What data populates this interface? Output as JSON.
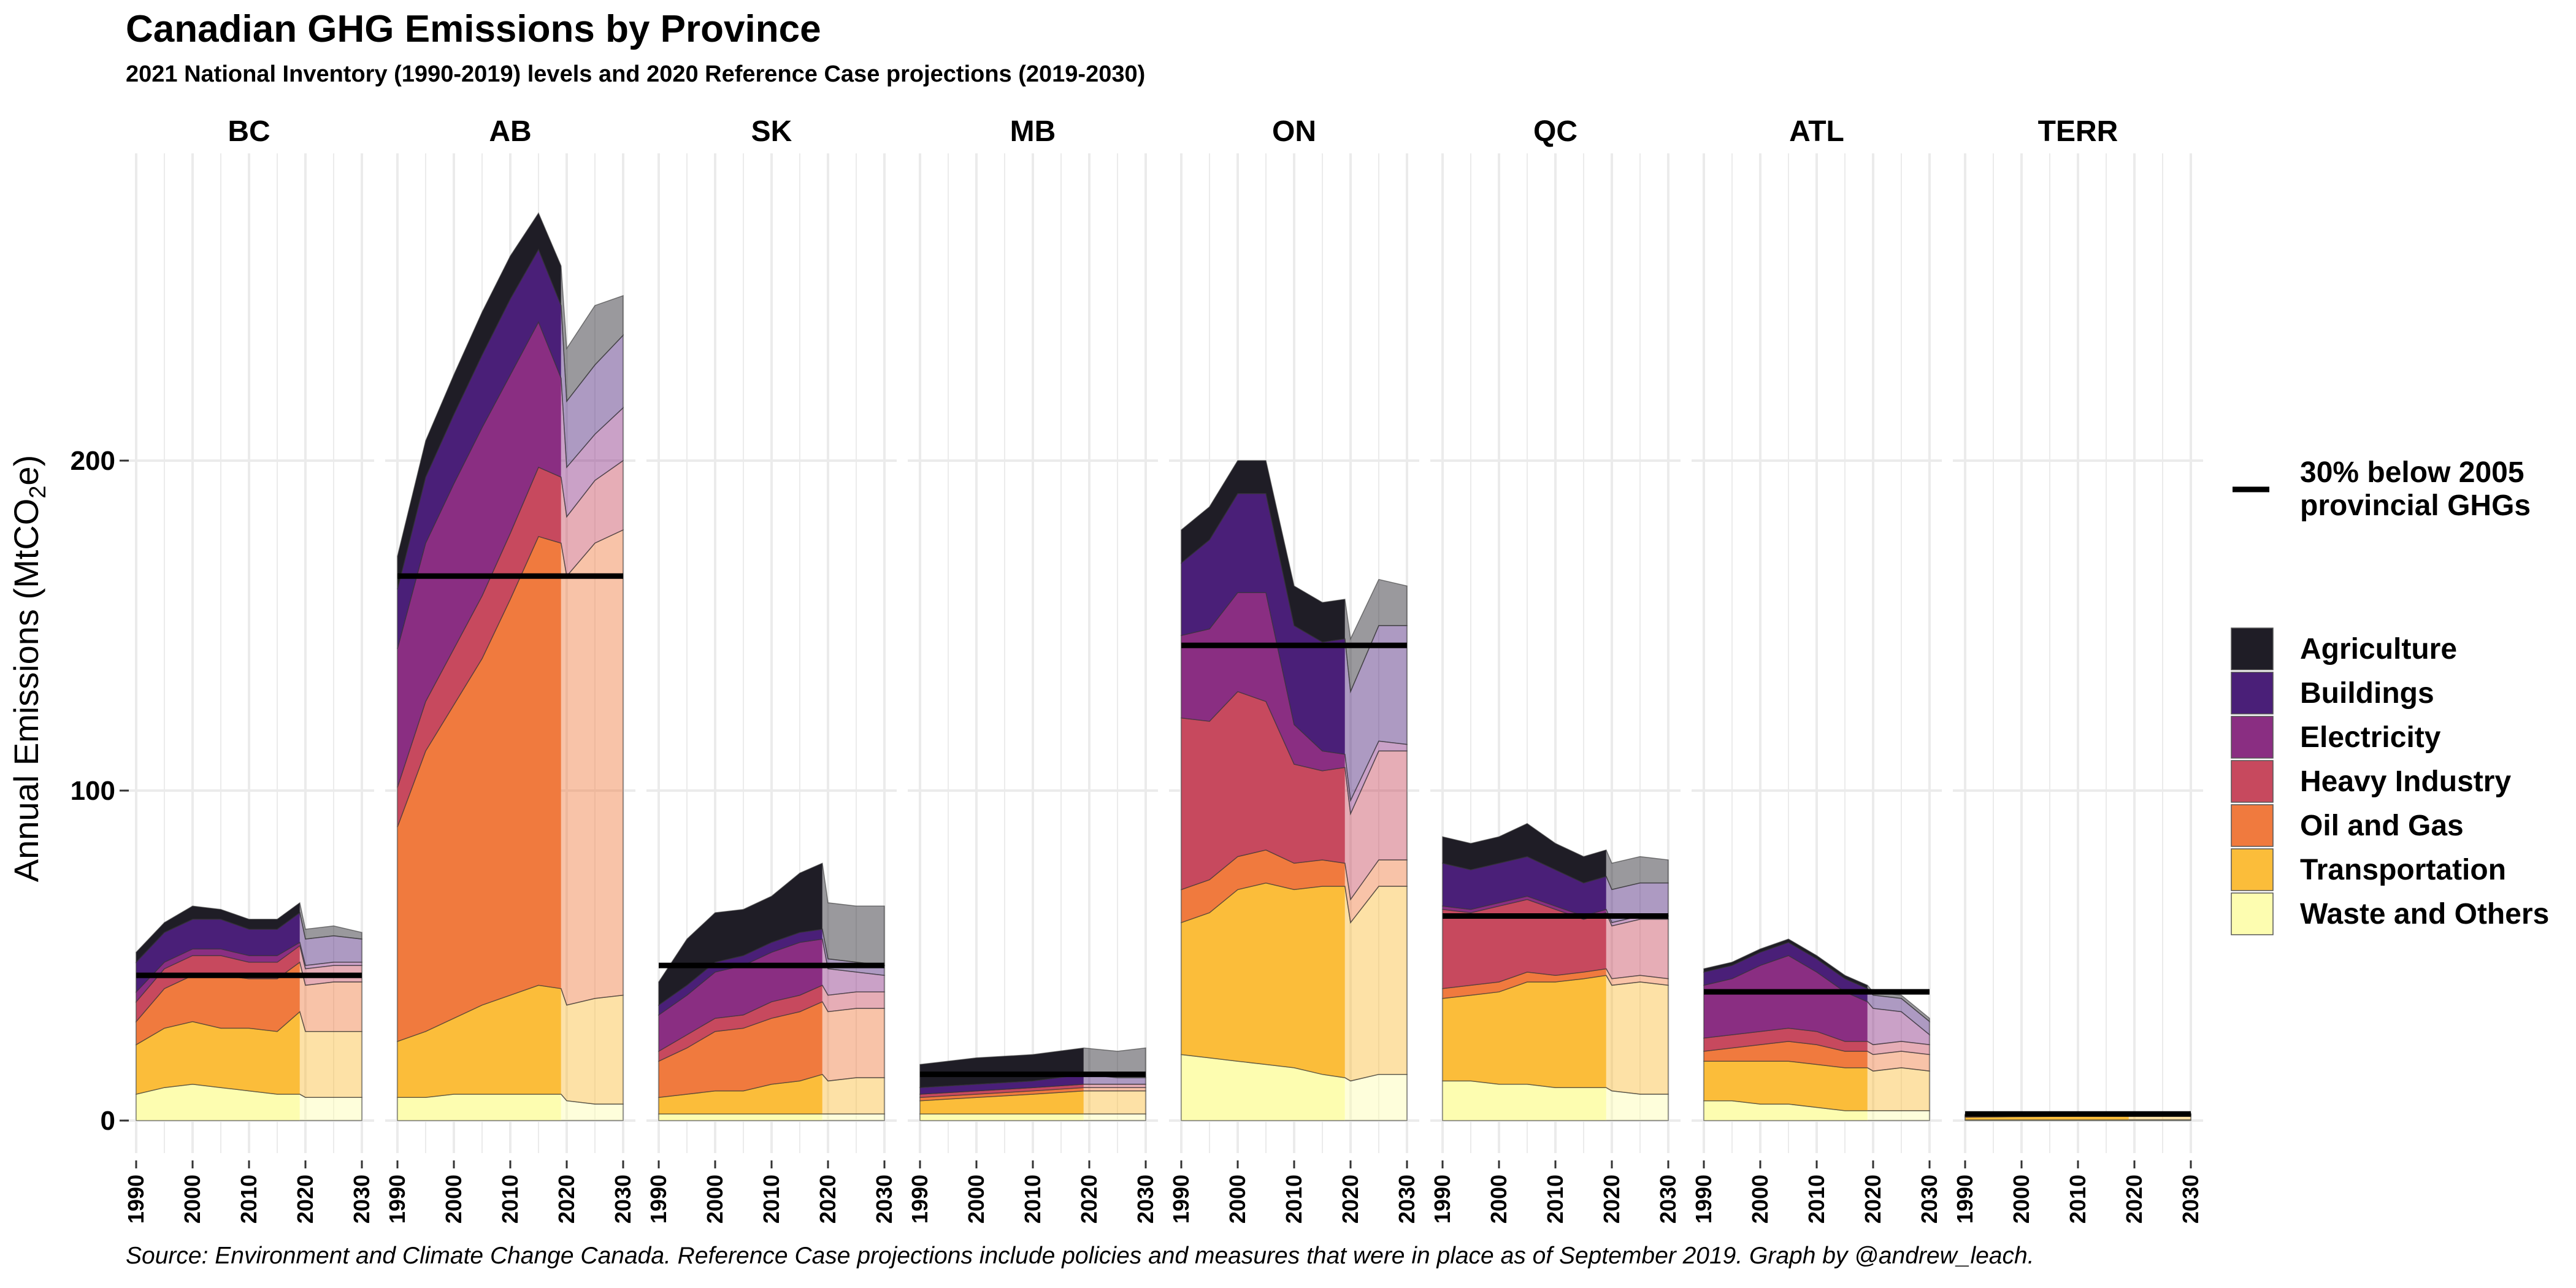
{
  "title": "Canadian GHG Emissions by Province",
  "subtitle": "2021 National Inventory (1990-2019) levels and 2020 Reference Case projections (2019-2030)",
  "caption": "Source: Environment and Climate Change Canada. Reference Case projections include policies and measures that were in place as of September 2019. Graph by @andrew_leach.",
  "colors": {
    "Agriculture": "#1f1d26",
    "Buildings": "#4a1f78",
    "Electricity": "#8a2e82",
    "Heavy Industry": "#c7495e",
    "Oil and Gas": "#f07a3e",
    "Transportation": "#fbbd3a",
    "Waste and Others": "#fdfdb0",
    "target_line": "#000000",
    "grid": "#ebebeb"
  },
  "legend": {
    "target_label_line1": "30% below 2005",
    "target_label_line2": "provincial GHGs"
  },
  "chart_data": {
    "type": "area",
    "stacked": true,
    "facet_by": "province",
    "ylabel": "Annual Emissions  (MtCO2e)",
    "xlim": [
      1990,
      2030
    ],
    "ylim": [
      0,
      280
    ],
    "yticks": [
      0,
      100,
      200
    ],
    "xticks": [
      1990,
      2000,
      2010,
      2020,
      2030
    ],
    "historic_end": 2019,
    "sectors": [
      "Waste and Others",
      "Transportation",
      "Oil and Gas",
      "Heavy Industry",
      "Electricity",
      "Buildings",
      "Agriculture"
    ],
    "panels": [
      {
        "province": "BC",
        "target": 44,
        "points": [
          {
            "year": 1990,
            "values": [
              8,
              15,
              7,
              6,
              3,
              9,
              3
            ]
          },
          {
            "year": 1995,
            "values": [
              10,
              18,
              12,
              6,
              2,
              9,
              3
            ]
          },
          {
            "year": 2000,
            "values": [
              11,
              19,
              14,
              6,
              2,
              9,
              4
            ]
          },
          {
            "year": 2005,
            "values": [
              10,
              18,
              16,
              6,
              2,
              9,
              3
            ]
          },
          {
            "year": 2010,
            "values": [
              9,
              19,
              15,
              5,
              2,
              8,
              3
            ]
          },
          {
            "year": 2015,
            "values": [
              8,
              19,
              16,
              5,
              2,
              8,
              3
            ]
          },
          {
            "year": 2019,
            "values": [
              8,
              25,
              15,
              5,
              1,
              9,
              3
            ]
          },
          {
            "year": 2020,
            "values": [
              7,
              20,
              14,
              5,
              1,
              8,
              3
            ]
          },
          {
            "year": 2025,
            "values": [
              7,
              20,
              15,
              5,
              1,
              8,
              3
            ]
          },
          {
            "year": 2030,
            "values": [
              7,
              20,
              15,
              5,
              1,
              7,
              2
            ]
          }
        ]
      },
      {
        "province": "AB",
        "target": 165,
        "points": [
          {
            "year": 1990,
            "values": [
              7,
              17,
              65,
              12,
              42,
              18,
              10
            ]
          },
          {
            "year": 1995,
            "values": [
              7,
              20,
              85,
              15,
              48,
              20,
              11
            ]
          },
          {
            "year": 2000,
            "values": [
              8,
              23,
              95,
              17,
              50,
              21,
              12
            ]
          },
          {
            "year": 2005,
            "values": [
              8,
              27,
              105,
              19,
              51,
              22,
              13
            ]
          },
          {
            "year": 2010,
            "values": [
              8,
              30,
              120,
              20,
              48,
              23,
              13
            ]
          },
          {
            "year": 2015,
            "values": [
              8,
              33,
              136,
              21,
              44,
              22,
              11
            ]
          },
          {
            "year": 2019,
            "values": [
              8,
              32,
              135,
              20,
              30,
              22,
              12
            ]
          },
          {
            "year": 2020,
            "values": [
              6,
              29,
              130,
              18,
              15,
              20,
              16
            ]
          },
          {
            "year": 2025,
            "values": [
              5,
              32,
              138,
              19,
              14,
              21,
              18
            ]
          },
          {
            "year": 2030,
            "values": [
              5,
              33,
              141,
              21,
              16,
              22,
              12
            ]
          }
        ]
      },
      {
        "province": "SK",
        "target": 47,
        "points": [
          {
            "year": 1990,
            "values": [
              2,
              5,
              11,
              3,
              11,
              3,
              7
            ]
          },
          {
            "year": 1995,
            "values": [
              2,
              6,
              14,
              4,
              12,
              3,
              14
            ]
          },
          {
            "year": 2000,
            "values": [
              2,
              7,
              18,
              4,
              14,
              3,
              15
            ]
          },
          {
            "year": 2005,
            "values": [
              2,
              7,
              19,
              4,
              15,
              3,
              14
            ]
          },
          {
            "year": 2010,
            "values": [
              2,
              9,
              20,
              5,
              15,
              3,
              14
            ]
          },
          {
            "year": 2015,
            "values": [
              2,
              10,
              21,
              5,
              16,
              3,
              18
            ]
          },
          {
            "year": 2019,
            "values": [
              2,
              12,
              22,
              5,
              14,
              3,
              20
            ]
          },
          {
            "year": 2020,
            "values": [
              2,
              10,
              21,
              5,
              8,
              3,
              17
            ]
          },
          {
            "year": 2025,
            "values": [
              2,
              11,
              21,
              5,
              6,
              3,
              17
            ]
          },
          {
            "year": 2030,
            "values": [
              2,
              11,
              21,
              5,
              5,
              3,
              18
            ]
          }
        ]
      },
      {
        "province": "MB",
        "target": 14,
        "points": [
          {
            "year": 1990,
            "values": [
              2,
              4,
              1,
              1,
              0,
              2,
              7
            ]
          },
          {
            "year": 2000,
            "values": [
              2,
              5,
              1,
              1,
              0,
              2,
              8
            ]
          },
          {
            "year": 2010,
            "values": [
              2,
              6,
              1,
              1,
              0,
              2,
              8
            ]
          },
          {
            "year": 2019,
            "values": [
              2,
              7,
              1,
              1,
              0,
              3,
              8
            ]
          },
          {
            "year": 2025,
            "values": [
              2,
              7,
              1,
              1,
              0,
              2,
              8
            ]
          },
          {
            "year": 2030,
            "values": [
              2,
              7,
              1,
              1,
              0,
              2,
              9
            ]
          }
        ]
      },
      {
        "province": "ON",
        "target": 144,
        "points": [
          {
            "year": 1990,
            "values": [
              20,
              40,
              10,
              52,
              25,
              22,
              10
            ]
          },
          {
            "year": 1995,
            "values": [
              19,
              44,
              10,
              48,
              28,
              27,
              10
            ]
          },
          {
            "year": 2000,
            "values": [
              18,
              52,
              10,
              50,
              30,
              30,
              10
            ]
          },
          {
            "year": 2005,
            "values": [
              17,
              55,
              10,
              45,
              33,
              30,
              10
            ]
          },
          {
            "year": 2010,
            "values": [
              16,
              54,
              8,
              30,
              12,
              30,
              12
            ]
          },
          {
            "year": 2015,
            "values": [
              14,
              57,
              8,
              27,
              6,
              33,
              12
            ]
          },
          {
            "year": 2019,
            "values": [
              13,
              58,
              7,
              29,
              4,
              35,
              12
            ]
          },
          {
            "year": 2020,
            "values": [
              12,
              48,
              7,
              26,
              4,
              33,
              16
            ]
          },
          {
            "year": 2025,
            "values": [
              14,
              57,
              8,
              33,
              3,
              35,
              14
            ]
          },
          {
            "year": 2030,
            "values": [
              14,
              57,
              8,
              33,
              2,
              36,
              12
            ]
          }
        ]
      },
      {
        "province": "QC",
        "target": 62,
        "points": [
          {
            "year": 1990,
            "values": [
              12,
              25,
              3,
              24,
              1,
              13,
              8
            ]
          },
          {
            "year": 1995,
            "values": [
              12,
              26,
              3,
              22,
              1,
              12,
              8
            ]
          },
          {
            "year": 2000,
            "values": [
              11,
              28,
              3,
              23,
              1,
              12,
              8
            ]
          },
          {
            "year": 2005,
            "values": [
              11,
              31,
              3,
              22,
              1,
              12,
              10
            ]
          },
          {
            "year": 2010,
            "values": [
              10,
              32,
              2,
              20,
              1,
              11,
              8
            ]
          },
          {
            "year": 2015,
            "values": [
              10,
              33,
              2,
              16,
              1,
              10,
              8
            ]
          },
          {
            "year": 2019,
            "values": [
              10,
              34,
              2,
              17,
              1,
              10,
              8
            ]
          },
          {
            "year": 2020,
            "values": [
              9,
              32,
              2,
              16,
              1,
              10,
              8
            ]
          },
          {
            "year": 2025,
            "values": [
              8,
              34,
              2,
              17,
              1,
              10,
              8
            ]
          },
          {
            "year": 2030,
            "values": [
              8,
              33,
              2,
              18,
              1,
              10,
              7
            ]
          }
        ]
      },
      {
        "province": "ATL",
        "target": 39,
        "points": [
          {
            "year": 1990,
            "values": [
              6,
              12,
              3,
              4,
              16,
              4,
              1
            ]
          },
          {
            "year": 1995,
            "values": [
              6,
              12,
              4,
              4,
              17,
              4,
              1
            ]
          },
          {
            "year": 2000,
            "values": [
              5,
              13,
              5,
              4,
              20,
              4,
              1
            ]
          },
          {
            "year": 2005,
            "values": [
              5,
              13,
              6,
              4,
              22,
              4,
              1
            ]
          },
          {
            "year": 2010,
            "values": [
              4,
              13,
              6,
              4,
              18,
              4,
              1
            ]
          },
          {
            "year": 2015,
            "values": [
              3,
              13,
              5,
              3,
              15,
              4,
              1
            ]
          },
          {
            "year": 2019,
            "values": [
              3,
              13,
              5,
              3,
              12,
              4,
              1
            ]
          },
          {
            "year": 2020,
            "values": [
              3,
              12,
              5,
              3,
              11,
              4,
              1
            ]
          },
          {
            "year": 2025,
            "values": [
              3,
              13,
              5,
              3,
              9,
              4,
              1
            ]
          },
          {
            "year": 2030,
            "values": [
              3,
              12,
              5,
              3,
              3,
              4,
              1
            ]
          }
        ]
      },
      {
        "province": "TERR",
        "target": 2,
        "points": [
          {
            "year": 1990,
            "values": [
              0.2,
              0.8,
              0.3,
              0.1,
              0.2,
              0.3,
              0
            ]
          },
          {
            "year": 2000,
            "values": [
              0.2,
              1.0,
              0.4,
              0.1,
              0.2,
              0.3,
              0
            ]
          },
          {
            "year": 2010,
            "values": [
              0.2,
              1.1,
              0.3,
              0.1,
              0.2,
              0.3,
              0
            ]
          },
          {
            "year": 2019,
            "values": [
              0.2,
              1.1,
              0.3,
              0.1,
              0.2,
              0.3,
              0
            ]
          },
          {
            "year": 2030,
            "values": [
              0.2,
              1.1,
              0.3,
              0.1,
              0.2,
              0.3,
              0
            ]
          }
        ]
      }
    ]
  }
}
